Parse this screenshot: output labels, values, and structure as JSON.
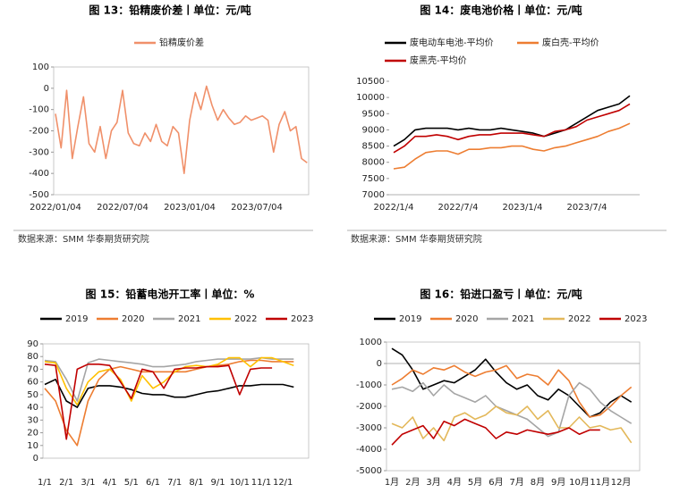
{
  "chart_data": [
    {
      "type": "line",
      "title": "图 13：铅精废价差丨单位：元/吨",
      "source": "数据来源：SMM 华泰期货研究院",
      "categories": [
        "2022/01/04",
        null,
        null,
        null,
        null,
        null,
        null,
        null,
        null,
        null,
        null,
        null,
        "2022/07/04",
        null,
        null,
        null,
        null,
        null,
        null,
        null,
        null,
        null,
        null,
        null,
        "2023/01/04",
        null,
        null,
        null,
        null,
        null,
        null,
        null,
        null,
        null,
        null,
        null,
        "2023/07/04",
        null,
        null,
        null,
        null,
        null,
        null,
        null,
        null,
        null
      ],
      "series": [
        {
          "name": "铅精废价差",
          "color": "#f0906a",
          "values": [
            -120,
            -280,
            -10,
            -330,
            -180,
            -40,
            -260,
            -300,
            -180,
            -330,
            -200,
            -160,
            -10,
            -210,
            -260,
            -270,
            -210,
            -250,
            -170,
            -250,
            -270,
            -180,
            -210,
            -400,
            -150,
            -20,
            -100,
            10,
            -80,
            -150,
            -100,
            -140,
            -170,
            -160,
            -130,
            -150,
            -140,
            -130,
            -150,
            -300,
            -170,
            -110,
            -200,
            -180,
            -330,
            -350
          ]
        }
      ],
      "ylim": [
        -500,
        100
      ],
      "yticks": [
        -500,
        -400,
        -300,
        -200,
        -100,
        0,
        100
      ],
      "legend": "top"
    },
    {
      "type": "line",
      "title": "图 14：废电池价格丨单位：元/吨",
      "source": "数据来源：SMM 华泰期货研究院",
      "categories": [
        "2022/1/4",
        null,
        null,
        null,
        null,
        null,
        "2022/7/4",
        null,
        null,
        null,
        null,
        null,
        "2023/1/4",
        null,
        null,
        null,
        null,
        null,
        "2023/7/4",
        null,
        null,
        null,
        null
      ],
      "series": [
        {
          "name": "废电动车电池-平均价",
          "color": "#000000",
          "values": [
            8500,
            8700,
            9000,
            9050,
            9050,
            9050,
            9000,
            9050,
            9000,
            9000,
            9050,
            9000,
            8950,
            8900,
            8800,
            8900,
            9000,
            9200,
            9400,
            9600,
            9700,
            9800,
            10050
          ]
        },
        {
          "name": "废白壳-平均价",
          "color": "#ed7d31",
          "values": [
            7800,
            7850,
            8100,
            8300,
            8350,
            8350,
            8250,
            8400,
            8400,
            8450,
            8450,
            8500,
            8500,
            8400,
            8350,
            8450,
            8500,
            8600,
            8700,
            8800,
            8950,
            9050,
            9200
          ]
        },
        {
          "name": "废黑壳-平均价",
          "color": "#c00000",
          "values": [
            8300,
            8500,
            8800,
            8800,
            8850,
            8800,
            8700,
            8800,
            8850,
            8850,
            8900,
            8900,
            8900,
            8850,
            8800,
            8950,
            9000,
            9100,
            9300,
            9400,
            9500,
            9600,
            9800
          ]
        }
      ],
      "ylim": [
        7000,
        10500
      ],
      "yticks": [
        7000,
        7500,
        8000,
        8500,
        9000,
        9500,
        10000,
        10500
      ],
      "legend": "upper left"
    },
    {
      "type": "line",
      "title": "图 15：铅蓄电池开工率丨单位：%",
      "categories": [
        "1/1",
        null,
        "2/1",
        null,
        "3/1",
        null,
        "4/1",
        null,
        "5/1",
        null,
        "6/1",
        null,
        "7/1",
        null,
        "8/1",
        null,
        "9/1",
        null,
        "10/1",
        null,
        "11/1",
        null,
        "12/1",
        null
      ],
      "series": [
        {
          "name": "2019",
          "color": "#000000",
          "values": [
            58,
            62,
            45,
            40,
            55,
            57,
            57,
            56,
            54,
            51,
            50,
            50,
            48,
            48,
            50,
            52,
            53,
            55,
            57,
            57,
            58,
            58,
            58,
            56
          ]
        },
        {
          "name": "2020",
          "color": "#ed7d31",
          "values": [
            55,
            45,
            22,
            10,
            45,
            62,
            70,
            72,
            70,
            68,
            68,
            68,
            68,
            68,
            70,
            72,
            73,
            74,
            76,
            77,
            77,
            76,
            76,
            76
          ]
        },
        {
          "name": "2021",
          "color": "#a5a5a5",
          "values": [
            77,
            76,
            62,
            45,
            75,
            78,
            77,
            76,
            75,
            74,
            72,
            72,
            73,
            74,
            76,
            77,
            78,
            78,
            78,
            78,
            79,
            78,
            78,
            78
          ]
        },
        {
          "name": "2022",
          "color": "#ffc000",
          "values": [
            76,
            75,
            55,
            42,
            60,
            68,
            70,
            62,
            45,
            65,
            55,
            60,
            68,
            72,
            73,
            72,
            74,
            79,
            79,
            72,
            79,
            79,
            76,
            73
          ]
        },
        {
          "name": "2023",
          "color": "#c00000",
          "values": [
            74,
            73,
            15,
            70,
            74,
            74,
            73,
            60,
            47,
            70,
            68,
            55,
            70,
            71,
            71,
            72,
            72,
            73,
            50,
            70,
            71,
            71,
            null,
            null
          ]
        }
      ],
      "ylim": [
        0,
        90
      ],
      "yticks": [
        0,
        10,
        20,
        30,
        40,
        50,
        60,
        70,
        80,
        90
      ],
      "legend": "top"
    },
    {
      "type": "line",
      "title": "图 16：铅进口盈亏丨单位：元/吨",
      "categories": [
        "1月",
        null,
        "2月",
        null,
        "3月",
        null,
        "4月",
        null,
        "5月",
        null,
        "6月",
        null,
        "7月",
        null,
        "8月",
        null,
        "9月",
        null,
        "10月",
        null,
        "11月",
        null,
        "12月",
        null
      ],
      "series": [
        {
          "name": "2019",
          "color": "#000000",
          "values": [
            700,
            400,
            -300,
            -1200,
            -1000,
            -800,
            -900,
            -600,
            -300,
            200,
            -400,
            -900,
            -1200,
            -1000,
            -1500,
            -1700,
            -1200,
            -1500,
            -2000,
            -2500,
            -2300,
            -1800,
            -1500,
            -1800
          ]
        },
        {
          "name": "2020",
          "color": "#ed7d31",
          "values": [
            -1000,
            -700,
            -300,
            -500,
            -200,
            -300,
            -100,
            -400,
            -600,
            -400,
            -300,
            -100,
            -700,
            -500,
            -600,
            -1000,
            -300,
            -800,
            -1800,
            -2500,
            -2400,
            -2000,
            -1500,
            -1100
          ]
        },
        {
          "name": "2021",
          "color": "#a5a5a5",
          "values": [
            -1200,
            -1100,
            -1300,
            -900,
            -1500,
            -1000,
            -1400,
            -1600,
            -1800,
            -1500,
            -2000,
            -2200,
            -2400,
            -2600,
            -3000,
            -3400,
            -3200,
            -1500,
            -900,
            -1200,
            -1800,
            -2200,
            -2500,
            -2800
          ]
        },
        {
          "name": "2022",
          "color": "#e3b85a",
          "values": [
            -2800,
            -3000,
            -2500,
            -3500,
            -3000,
            -3600,
            -2500,
            -2300,
            -2600,
            -2400,
            -2000,
            -2300,
            -2400,
            -2000,
            -2600,
            -2200,
            -3000,
            -3000,
            -2500,
            -3000,
            -2900,
            -3100,
            -3000,
            -3700
          ]
        },
        {
          "name": "2023",
          "color": "#c00000",
          "values": [
            -3800,
            -3300,
            -3100,
            -2900,
            -3500,
            -2700,
            -2900,
            -2600,
            -2800,
            -3000,
            -3500,
            -3200,
            -3300,
            -3100,
            -3200,
            -3300,
            -3200,
            -3000,
            -3300,
            -3100,
            -3100,
            null,
            null,
            null
          ]
        }
      ],
      "ylim": [
        -5000,
        1000
      ],
      "yticks": [
        -5000,
        -4000,
        -3000,
        -2000,
        -1000,
        0,
        1000
      ],
      "legend": "top"
    }
  ]
}
